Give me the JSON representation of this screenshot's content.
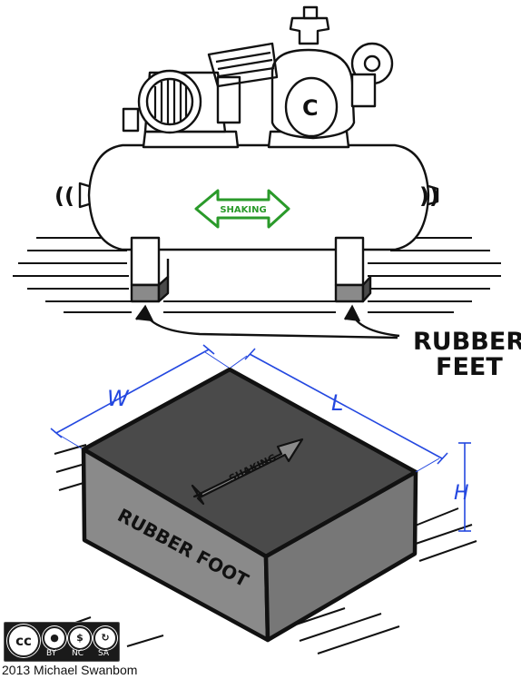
{
  "labels": {
    "shaking_top": "SHAKING",
    "rubber_feet_line1": "RUBBER",
    "rubber_feet_line2": "FEET",
    "dim_w": "W",
    "dim_l": "L",
    "dim_h": "H",
    "shaking_block": "SHAKING",
    "rubber_foot": "RUBBER FOOT",
    "vibration_left": "((",
    "vibration_right": "))"
  },
  "license": {
    "cc": "cc",
    "by": "BY",
    "nc": "NC",
    "sa": "SA"
  },
  "credit": "2013 Michael Swanbom",
  "colors": {
    "shaking_arrow": "#2a9a2a",
    "dimension": "#2448e0",
    "rubber": "#8a8a8a",
    "rubber_side": "#777777",
    "rubber_top": "#4a4a4a",
    "ink": "#111111"
  }
}
